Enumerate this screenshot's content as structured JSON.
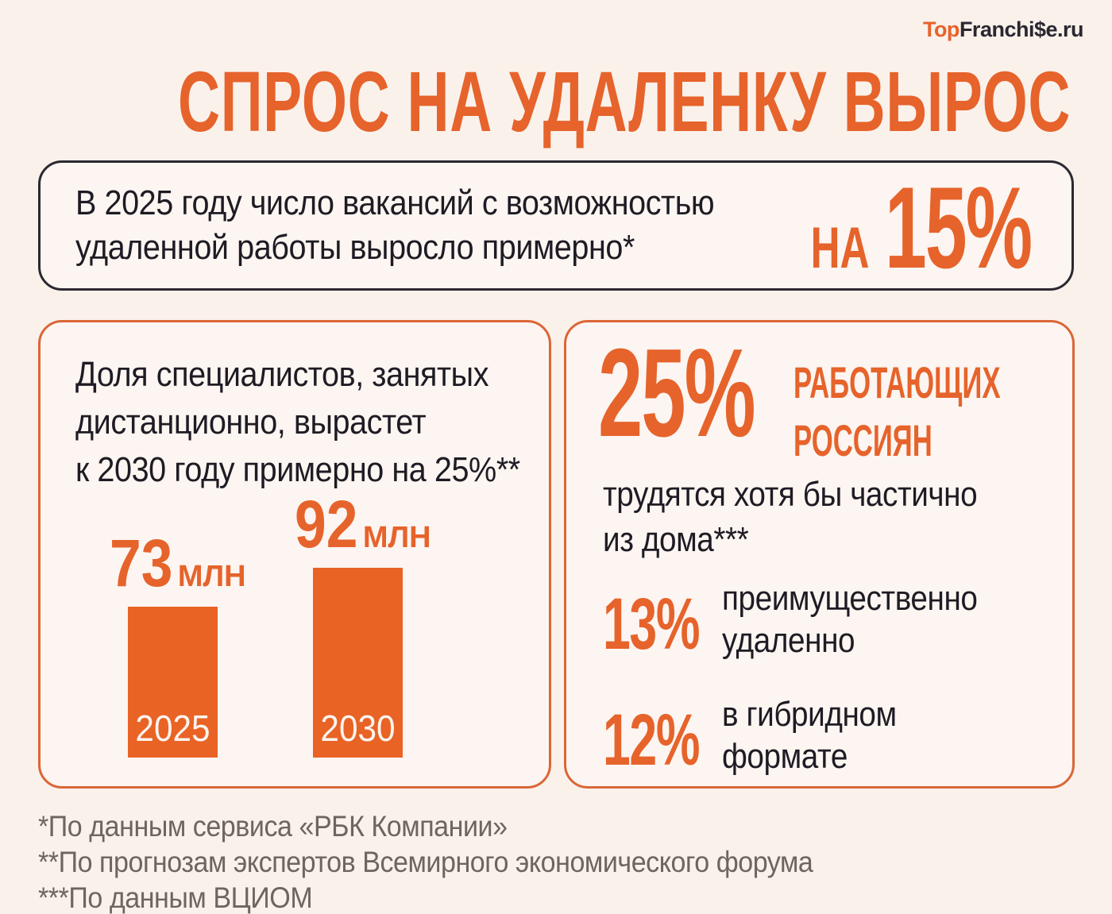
{
  "colors": {
    "accent": "#E6632B",
    "bar_fill": "#E96325",
    "dark_text": "#1E1B24",
    "muted_text": "#6C6560",
    "background": "#FAF1EB",
    "card_background": "#FCF5F1",
    "dark_border": "#2B2831",
    "orange_border": "#DB6637"
  },
  "logo": {
    "prefix": "Top",
    "suffix": "Franchi$e.ru"
  },
  "title": "СПРОС НА УДАЛЕНКУ ВЫРОС",
  "headline_card": {
    "lines": [
      "В 2025 году число вакансий с возможностью",
      "удаленной работы выросло примерно*"
    ],
    "stat_prefix": "НА",
    "stat_value": "15%"
  },
  "forecast_card": {
    "heading_lines": [
      "Доля специалистов, занятых",
      "дистанционно, вырастет",
      "к 2030 году примерно на 25%**"
    ]
  },
  "chart_data": {
    "type": "bar",
    "categories": [
      "2025",
      "2030"
    ],
    "values": [
      73,
      92
    ],
    "unit": "млн",
    "bar_labels": [
      "73",
      "92"
    ],
    "title": "Доля специалистов, занятых дистанционно, вырастет к 2030 году примерно на 25%**",
    "bar_color": "#E96325",
    "value_label_position": "above",
    "category_label_position": "inside-bottom",
    "grid": false,
    "legend": false
  },
  "share_card": {
    "stat_value": "25%",
    "stat_label_lines": [
      "РАБОТАЮЩИХ",
      "РОССИЯН"
    ],
    "description_lines": [
      "трудятся хотя бы частично",
      "из дома***"
    ],
    "rows": [
      {
        "value": "13%",
        "label_lines": [
          "преимущественно",
          "удаленно"
        ]
      },
      {
        "value": "12%",
        "label_lines": [
          "в гибридном",
          "формате"
        ]
      }
    ]
  },
  "footnotes": [
    "*По данным сервиса «РБК Компании»",
    "**По прогнозам экспертов Всемирного экономического форума",
    "***По данным ВЦИОМ"
  ]
}
